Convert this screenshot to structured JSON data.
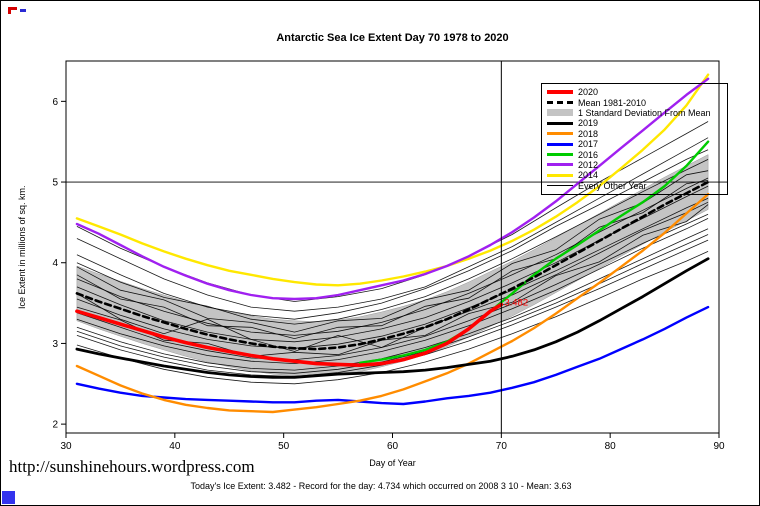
{
  "page": {
    "title": "Antarctic Sea Ice Extent Day 70 1978 to 2020",
    "footer_url": "http://sunshinehours.wordpress.com",
    "footer_caption": "Today's Ice Extent: 3.482  - Record for the day: 4.734 which occurred on 2008 3 10  - Mean: 3.63"
  },
  "legend": {
    "items": [
      {
        "label": "2020",
        "swatch": "line",
        "color": "#FF0000",
        "width": 4
      },
      {
        "label": "Mean 1981-2010",
        "swatch": "dashed",
        "color": "#000000",
        "width": 3
      },
      {
        "label": "1 Standard Deviation From Mean",
        "swatch": "box",
        "color": "#C4C4C4"
      },
      {
        "label": "2019",
        "swatch": "line",
        "color": "#000000",
        "width": 3
      },
      {
        "label": "2018",
        "swatch": "line",
        "color": "#FF8C00",
        "width": 3
      },
      {
        "label": "2017",
        "swatch": "line",
        "color": "#0000FF",
        "width": 3
      },
      {
        "label": "2016",
        "swatch": "line",
        "color": "#00CC00",
        "width": 3
      },
      {
        "label": "2012",
        "swatch": "line",
        "color": "#A020F0",
        "width": 3
      },
      {
        "label": "2014",
        "swatch": "line",
        "color": "#FFE800",
        "width": 3
      },
      {
        "label": "Every Other Year",
        "swatch": "line",
        "color": "#000000",
        "width": 1
      }
    ]
  },
  "chart_data": {
    "type": "line",
    "title": "Antarctic Sea Ice Extent Day 70 1978 to 2020",
    "xlabel": "Day of Year",
    "ylabel": "Ice Extent in millions of sq. km.",
    "xlim": [
      30,
      90
    ],
    "ylim": [
      1.89,
      6.5
    ],
    "xticks": [
      30,
      40,
      50,
      60,
      70,
      80,
      90
    ],
    "yticks": [
      2,
      3,
      4,
      5,
      6
    ],
    "vline_x": 70,
    "hline_y": 5.0,
    "annotation": {
      "x": 70,
      "y": 3.482,
      "text": "3.482",
      "color": "#FF0000"
    },
    "band": {
      "label": "1 Standard Deviation From Mean",
      "color": "#C4C4C4",
      "sd": 0.34,
      "mean_series": "Mean 1981-2010"
    },
    "x_main": [
      31,
      33,
      35,
      37,
      39,
      41,
      43,
      45,
      47,
      49,
      51,
      53,
      55,
      57,
      59,
      61,
      63,
      65,
      67,
      69,
      71,
      73,
      75,
      77,
      79,
      81,
      83,
      85,
      87,
      89
    ],
    "series": [
      {
        "name": "2014",
        "color": "#FFE800",
        "width": 2.4,
        "x": "x_main",
        "values": [
          4.55,
          4.45,
          4.35,
          4.24,
          4.14,
          4.05,
          3.97,
          3.9,
          3.85,
          3.8,
          3.76,
          3.73,
          3.72,
          3.74,
          3.78,
          3.83,
          3.89,
          3.96,
          4.05,
          4.15,
          4.27,
          4.41,
          4.57,
          4.75,
          4.95,
          5.17,
          5.4,
          5.65,
          5.95,
          6.33
        ]
      },
      {
        "name": "2012",
        "color": "#A020F0",
        "width": 2.4,
        "x": "x_main",
        "values": [
          4.48,
          4.36,
          4.22,
          4.08,
          3.95,
          3.84,
          3.74,
          3.66,
          3.6,
          3.56,
          3.55,
          3.56,
          3.6,
          3.66,
          3.72,
          3.78,
          3.86,
          3.96,
          4.08,
          4.22,
          4.38,
          4.56,
          4.76,
          4.98,
          5.2,
          5.42,
          5.64,
          5.86,
          6.08,
          6.28
        ]
      },
      {
        "name": "2017",
        "color": "#0000FF",
        "width": 2.4,
        "x": "x_main",
        "values": [
          2.5,
          2.44,
          2.39,
          2.35,
          2.33,
          2.31,
          2.3,
          2.29,
          2.28,
          2.27,
          2.27,
          2.29,
          2.3,
          2.28,
          2.26,
          2.25,
          2.28,
          2.32,
          2.35,
          2.39,
          2.45,
          2.52,
          2.61,
          2.71,
          2.81,
          2.93,
          3.05,
          3.18,
          3.32,
          3.45
        ]
      },
      {
        "name": "2018",
        "color": "#FF8C00",
        "width": 2.4,
        "x": "x_main",
        "values": [
          2.72,
          2.6,
          2.48,
          2.38,
          2.3,
          2.24,
          2.2,
          2.17,
          2.16,
          2.15,
          2.18,
          2.21,
          2.25,
          2.29,
          2.35,
          2.43,
          2.53,
          2.63,
          2.75,
          2.89,
          3.03,
          3.19,
          3.37,
          3.56,
          3.75,
          3.95,
          4.15,
          4.37,
          4.61,
          4.85
        ]
      },
      {
        "name": "2016",
        "color": "#00CC00",
        "width": 2.4,
        "x": [
          57,
          59,
          61,
          63,
          65,
          67,
          69,
          71,
          73,
          75,
          77,
          79,
          81,
          83,
          85,
          87,
          89
        ],
        "values": [
          2.76,
          2.8,
          2.85,
          2.92,
          3.02,
          3.18,
          3.4,
          3.62,
          3.85,
          4.05,
          4.22,
          4.4,
          4.58,
          4.75,
          4.95,
          5.2,
          5.5
        ]
      },
      {
        "name": "2019",
        "color": "#000000",
        "width": 2.8,
        "x": "x_main",
        "values": [
          2.93,
          2.87,
          2.82,
          2.77,
          2.72,
          2.68,
          2.64,
          2.61,
          2.59,
          2.58,
          2.58,
          2.6,
          2.62,
          2.63,
          2.64,
          2.65,
          2.67,
          2.7,
          2.74,
          2.78,
          2.84,
          2.92,
          3.02,
          3.14,
          3.28,
          3.43,
          3.58,
          3.74,
          3.9,
          4.05
        ]
      },
      {
        "name": "Mean 1981-2010",
        "color": "#000000",
        "width": 2.6,
        "dash": "6 4",
        "x": "x_main",
        "values": [
          3.62,
          3.52,
          3.43,
          3.34,
          3.26,
          3.18,
          3.11,
          3.05,
          3.0,
          2.96,
          2.94,
          2.93,
          2.95,
          2.99,
          3.05,
          3.12,
          3.2,
          3.3,
          3.42,
          3.55,
          3.68,
          3.82,
          3.97,
          4.12,
          4.27,
          4.42,
          4.57,
          4.72,
          4.86,
          5.0
        ]
      },
      {
        "name": "2020",
        "color": "#FF0000",
        "width": 3.6,
        "x": [
          31,
          33,
          35,
          37,
          39,
          41,
          43,
          45,
          47,
          49,
          51,
          53,
          55,
          57,
          59,
          61,
          63,
          65,
          67,
          69,
          70
        ],
        "values": [
          3.4,
          3.32,
          3.24,
          3.16,
          3.08,
          3.01,
          2.95,
          2.9,
          2.85,
          2.81,
          2.78,
          2.75,
          2.74,
          2.73,
          2.75,
          2.8,
          2.88,
          3.0,
          3.18,
          3.4,
          3.482
        ]
      }
    ],
    "background": {
      "label": "Every Other Year",
      "color": "#000000",
      "width": 0.8,
      "x": [
        31,
        35,
        39,
        43,
        47,
        51,
        55,
        59,
        63,
        67,
        71,
        75,
        79,
        83,
        87,
        89
      ],
      "lines": [
        [
          4.45,
          4.18,
          3.95,
          3.75,
          3.6,
          3.52,
          3.58,
          3.68,
          3.85,
          4.08,
          4.35,
          4.68,
          5.0,
          5.3,
          5.6,
          5.75
        ],
        [
          4.3,
          4.05,
          3.8,
          3.6,
          3.45,
          3.4,
          3.45,
          3.55,
          3.7,
          3.95,
          4.2,
          4.5,
          4.8,
          5.1,
          5.4,
          5.55
        ],
        [
          4.1,
          3.85,
          3.62,
          3.45,
          3.35,
          3.3,
          3.38,
          3.5,
          3.68,
          3.9,
          4.15,
          4.45,
          4.72,
          5.0,
          5.28,
          5.4
        ],
        [
          3.95,
          3.66,
          3.54,
          3.31,
          3.26,
          3.14,
          3.28,
          3.31,
          3.54,
          3.66,
          3.99,
          4.16,
          4.54,
          4.74,
          5.09,
          5.14
        ],
        [
          3.8,
          3.58,
          3.4,
          3.25,
          3.14,
          3.1,
          3.15,
          3.26,
          3.42,
          3.62,
          3.85,
          4.1,
          4.38,
          4.65,
          4.92,
          5.05
        ],
        [
          3.7,
          3.48,
          3.28,
          3.14,
          3.05,
          3.02,
          3.08,
          3.18,
          3.32,
          3.52,
          3.75,
          4.0,
          4.28,
          4.55,
          4.82,
          4.95
        ],
        [
          3.55,
          3.35,
          3.18,
          3.05,
          2.97,
          2.94,
          2.99,
          3.09,
          3.24,
          3.44,
          3.66,
          3.9,
          4.16,
          4.42,
          4.68,
          4.8
        ],
        [
          3.45,
          3.29,
          3.04,
          3.0,
          2.84,
          2.89,
          2.86,
          3.04,
          3.1,
          3.37,
          3.51,
          3.84,
          4.01,
          4.34,
          4.51,
          4.72
        ],
        [
          3.3,
          3.12,
          2.97,
          2.85,
          2.78,
          2.75,
          2.8,
          2.9,
          3.04,
          3.22,
          3.43,
          3.66,
          3.92,
          4.18,
          4.42,
          4.55
        ],
        [
          3.2,
          3.02,
          2.87,
          2.76,
          2.69,
          2.67,
          2.72,
          2.81,
          2.95,
          3.12,
          3.32,
          3.55,
          3.8,
          4.05,
          4.3,
          4.42
        ],
        [
          3.1,
          2.92,
          2.78,
          2.67,
          2.61,
          2.59,
          2.64,
          2.73,
          2.86,
          3.03,
          3.23,
          3.45,
          3.68,
          3.92,
          4.16,
          4.28
        ],
        [
          2.98,
          2.82,
          2.68,
          2.58,
          2.52,
          2.5,
          2.55,
          2.64,
          2.77,
          2.93,
          3.12,
          3.33,
          3.56,
          3.8,
          4.02,
          4.14
        ],
        [
          3.62,
          3.3,
          3.12,
          3.3,
          3.05,
          2.9,
          3.1,
          2.95,
          3.2,
          3.4,
          3.6,
          3.85,
          4.12,
          4.4,
          4.62,
          4.75
        ],
        [
          4.0,
          3.76,
          3.57,
          3.46,
          3.3,
          3.24,
          3.3,
          3.42,
          3.58,
          3.8,
          4.05,
          4.32,
          4.6,
          4.88,
          5.15,
          5.28
        ],
        [
          3.38,
          3.2,
          3.02,
          2.91,
          2.82,
          2.8,
          2.85,
          2.95,
          3.09,
          3.28,
          3.49,
          3.73,
          3.98,
          4.24,
          4.48,
          4.6
        ],
        [
          3.15,
          2.97,
          2.83,
          2.72,
          2.65,
          2.63,
          2.68,
          2.77,
          2.9,
          3.08,
          3.28,
          3.5,
          3.74,
          3.99,
          4.23,
          4.35
        ],
        [
          3.85,
          3.55,
          3.45,
          3.22,
          3.2,
          3.06,
          3.2,
          3.22,
          3.46,
          3.56,
          3.9,
          4.05,
          4.44,
          4.62,
          4.98,
          5.02
        ]
      ]
    }
  }
}
